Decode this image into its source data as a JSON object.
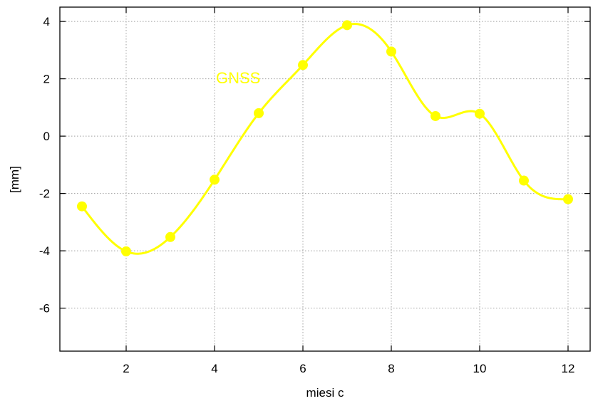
{
  "chart_data": {
    "type": "line",
    "title": "",
    "xlabel": "miesi c",
    "ylabel": "[mm]",
    "xlim": [
      0.5,
      12.5
    ],
    "ylim": [
      -7.5,
      4.5
    ],
    "xticks": [
      2,
      4,
      6,
      8,
      10,
      12
    ],
    "yticks": [
      -6,
      -4,
      -2,
      0,
      2,
      4
    ],
    "grid": true,
    "series": [
      {
        "name": "GNSS",
        "color": "#ffff00",
        "smooth": true,
        "marker": "circle",
        "x": [
          1,
          2,
          3,
          4,
          5,
          6,
          7,
          8,
          9,
          10,
          11,
          12
        ],
        "y": [
          -2.45,
          -4.02,
          -3.52,
          -1.52,
          0.8,
          2.48,
          3.87,
          2.95,
          0.7,
          0.78,
          -1.55,
          -2.2
        ]
      }
    ]
  }
}
